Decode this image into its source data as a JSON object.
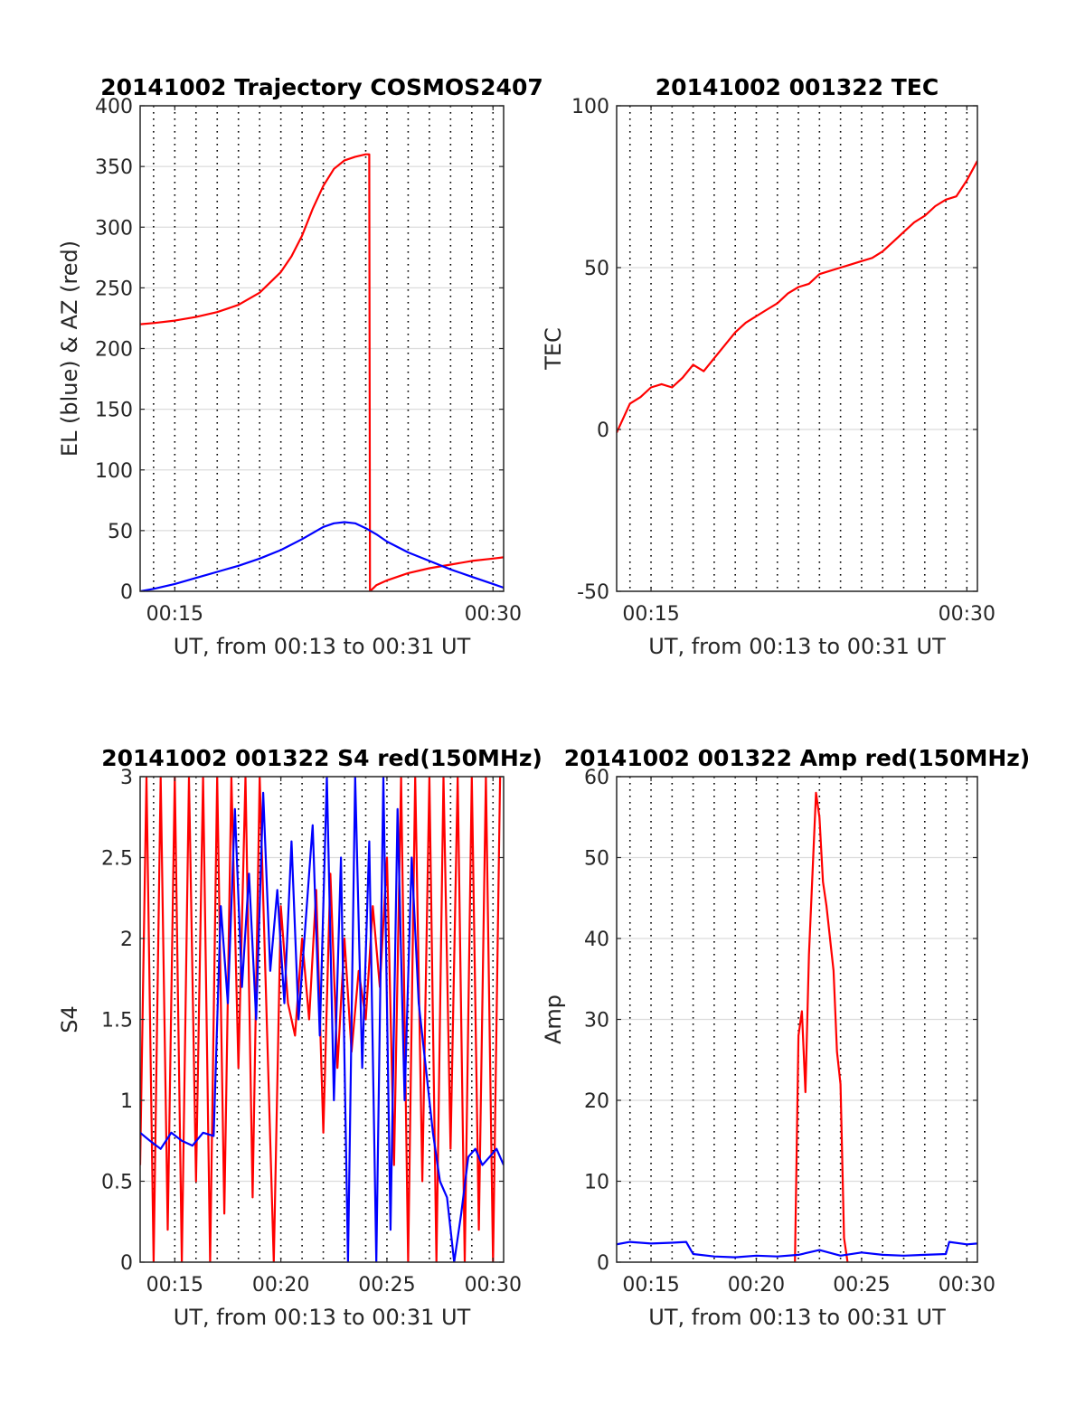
{
  "chart_data": [
    {
      "type": "line",
      "title": "20141002 Trajectory COSMOS2407",
      "xlabel": "UT, from 00:13 to 00:31 UT",
      "ylabel": "EL (blue) & AZ (red)",
      "xlim": [
        "00:13:22",
        "00:30:30"
      ],
      "ylim": [
        0,
        400
      ],
      "yticks": [
        0,
        50,
        100,
        150,
        200,
        250,
        300,
        350,
        400
      ],
      "xticks": [
        "00:15",
        "00:30"
      ],
      "grid": true,
      "series": [
        {
          "color": "#ff0000",
          "x": [
            "00:13:22",
            "00:14",
            "00:15",
            "00:16",
            "00:17",
            "00:18",
            "00:19",
            "00:20",
            "00:20:30",
            "00:21",
            "00:21:30",
            "00:22",
            "00:22:30",
            "00:23",
            "00:23:30",
            "00:24",
            "00:24:10",
            "00:24:12",
            "00:24:30",
            "00:25",
            "00:26",
            "00:27",
            "00:28",
            "00:29",
            "00:30",
            "00:30:30"
          ],
          "values": [
            220,
            221,
            223,
            226,
            230,
            236,
            246,
            263,
            276,
            293,
            315,
            334,
            348,
            355,
            358,
            360,
            360,
            0,
            5,
            9,
            15,
            19,
            22,
            25,
            27,
            28
          ]
        },
        {
          "color": "#0000ff",
          "x": [
            "00:13:22",
            "00:14",
            "00:15",
            "00:16",
            "00:17",
            "00:18",
            "00:19",
            "00:20",
            "00:21",
            "00:22",
            "00:22:30",
            "00:23",
            "00:23:30",
            "00:24",
            "00:24:30",
            "00:25",
            "00:26",
            "00:27",
            "00:28",
            "00:29",
            "00:30",
            "00:30:30"
          ],
          "values": [
            0,
            2,
            6,
            11,
            16,
            21,
            27,
            34,
            43,
            53,
            56,
            57,
            56,
            52,
            47,
            41,
            32,
            25,
            18,
            12,
            6,
            3
          ]
        }
      ]
    },
    {
      "type": "line",
      "title": "20141002 001322 TEC",
      "xlabel": "UT, from 00:13 to 00:31 UT",
      "ylabel": "TEC",
      "xlim": [
        "00:13:22",
        "00:30:30"
      ],
      "ylim": [
        -50,
        100
      ],
      "yticks": [
        -50,
        0,
        50,
        100
      ],
      "xticks": [
        "00:15",
        "00:30"
      ],
      "grid": true,
      "series": [
        {
          "color": "#ff0000",
          "x": [
            "00:13:22",
            "00:14",
            "00:14:30",
            "00:15",
            "00:15:30",
            "00:16",
            "00:16:30",
            "00:17",
            "00:17:30",
            "00:18",
            "00:18:30",
            "00:19",
            "00:19:30",
            "00:20",
            "00:20:30",
            "00:21",
            "00:21:30",
            "00:22",
            "00:22:30",
            "00:23",
            "00:23:30",
            "00:24",
            "00:24:30",
            "00:25",
            "00:25:30",
            "00:26",
            "00:26:30",
            "00:27",
            "00:27:30",
            "00:28",
            "00:28:30",
            "00:29",
            "00:29:30",
            "00:30",
            "00:30:30"
          ],
          "values": [
            -1,
            8,
            10,
            13,
            14,
            13,
            16,
            20,
            18,
            22,
            26,
            30,
            33,
            35,
            37,
            39,
            42,
            44,
            45,
            48,
            49,
            50,
            51,
            52,
            53,
            55,
            58,
            61,
            64,
            66,
            69,
            71,
            72,
            77,
            83
          ]
        }
      ]
    },
    {
      "type": "line",
      "title": "20141002 001322 S4 red(150MHz)",
      "xlabel": "UT, from 00:13 to 00:31 UT",
      "ylabel": "S4",
      "xlim": [
        "00:13:22",
        "00:30:30"
      ],
      "ylim": [
        0,
        3
      ],
      "yticks": [
        0,
        0.5,
        1,
        1.5,
        2,
        2.5,
        3
      ],
      "xticks": [
        "00:15",
        "00:20",
        "00:25",
        "00:30"
      ],
      "grid": true,
      "series": [
        {
          "color": "#ff0000",
          "x": [
            "00:13:22",
            "00:13:40",
            "00:14",
            "00:14:20",
            "00:14:40",
            "00:15",
            "00:15:20",
            "00:15:40",
            "00:16",
            "00:16:20",
            "00:16:40",
            "00:17",
            "00:17:20",
            "00:17:40",
            "00:18",
            "00:18:20",
            "00:18:40",
            "00:19",
            "00:19:20",
            "00:19:40",
            "00:20",
            "00:20:20",
            "00:20:40",
            "00:21",
            "00:21:20",
            "00:21:40",
            "00:22",
            "00:22:20",
            "00:22:40",
            "00:23",
            "00:23:20",
            "00:23:40",
            "00:24",
            "00:24:20",
            "00:24:40",
            "00:25",
            "00:25:20",
            "00:25:40",
            "00:26",
            "00:26:20",
            "00:26:40",
            "00:27",
            "00:27:20",
            "00:27:40",
            "00:28",
            "00:28:20",
            "00:28:40",
            "00:29",
            "00:29:20",
            "00:29:40",
            "00:30",
            "00:30:20"
          ],
          "values": [
            0.6,
            3,
            0,
            3,
            0.2,
            3,
            0,
            3,
            0.5,
            3,
            0,
            3,
            0.3,
            3,
            1.2,
            3,
            0.4,
            3,
            1.5,
            0,
            2.2,
            1.6,
            1.4,
            2.0,
            1.5,
            2.3,
            0.8,
            2.4,
            1.2,
            2.0,
            1.3,
            1.8,
            1.5,
            2.2,
            1.7,
            2.5,
            0.6,
            3,
            0,
            3,
            0.5,
            3,
            0,
            3,
            0.7,
            3,
            0,
            3,
            0.2,
            3,
            0,
            3
          ]
        },
        {
          "color": "#0000ff",
          "x": [
            "00:13:22",
            "00:13:50",
            "00:14:20",
            "00:14:50",
            "00:15:20",
            "00:15:50",
            "00:16:20",
            "00:16:50",
            "00:17:10",
            "00:17:30",
            "00:17:50",
            "00:18:10",
            "00:18:30",
            "00:18:50",
            "00:19:10",
            "00:19:30",
            "00:19:50",
            "00:20:10",
            "00:20:30",
            "00:20:50",
            "00:21:10",
            "00:21:30",
            "00:21:50",
            "00:22:10",
            "00:22:30",
            "00:22:50",
            "00:23:10",
            "00:23:30",
            "00:23:50",
            "00:24:10",
            "00:24:30",
            "00:24:50",
            "00:25:10",
            "00:25:30",
            "00:25:50",
            "00:26:10",
            "00:26:30",
            "00:26:50",
            "00:27:10",
            "00:27:30",
            "00:27:50",
            "00:28:10",
            "00:28:30",
            "00:28:50",
            "00:29:10",
            "00:29:30",
            "00:29:50",
            "00:30:10",
            "00:30:30"
          ],
          "values": [
            0.8,
            0.75,
            0.7,
            0.8,
            0.75,
            0.72,
            0.8,
            0.78,
            2.2,
            1.6,
            2.8,
            1.7,
            2.4,
            1.5,
            2.9,
            1.8,
            2.3,
            1.6,
            2.6,
            1.5,
            2.1,
            2.7,
            1.4,
            3,
            1.0,
            2.5,
            0,
            3,
            1.2,
            2.6,
            0,
            3,
            0.2,
            2.8,
            1.0,
            2.5,
            1.6,
            1.2,
            0.8,
            0.5,
            0.4,
            0,
            0.3,
            0.65,
            0.7,
            0.6,
            0.65,
            0.7,
            0.6
          ]
        }
      ]
    },
    {
      "type": "line",
      "title": "20141002 001322 Amp red(150MHz)",
      "xlabel": "UT, from 00:13 to 00:31 UT",
      "ylabel": "Amp",
      "xlim": [
        "00:13:22",
        "00:30:30"
      ],
      "ylim": [
        0,
        60
      ],
      "yticks": [
        0,
        10,
        20,
        30,
        40,
        50,
        60
      ],
      "xticks": [
        "00:15",
        "00:20",
        "00:25",
        "00:30"
      ],
      "grid": true,
      "series": [
        {
          "color": "#ff0000",
          "x": [
            "00:21:50",
            "00:22:00",
            "00:22:10",
            "00:22:20",
            "00:22:30",
            "00:22:40",
            "00:22:50",
            "00:23:00",
            "00:23:10",
            "00:23:20",
            "00:23:30",
            "00:23:40",
            "00:23:50",
            "00:24:00",
            "00:24:10",
            "00:24:20"
          ],
          "values": [
            0,
            28,
            31,
            21,
            38,
            48,
            58,
            55,
            47,
            44,
            40,
            36,
            26,
            22,
            3,
            0
          ]
        },
        {
          "color": "#0000ff",
          "x": [
            "00:13:22",
            "00:14",
            "00:15",
            "00:16",
            "00:16:40",
            "00:17",
            "00:18",
            "00:19",
            "00:20",
            "00:21",
            "00:22",
            "00:23",
            "00:24",
            "00:25",
            "00:26",
            "00:27",
            "00:28",
            "00:29",
            "00:29:10",
            "00:30",
            "00:30:30"
          ],
          "values": [
            2.2,
            2.5,
            2.3,
            2.4,
            2.5,
            1.0,
            0.7,
            0.6,
            0.8,
            0.7,
            0.9,
            1.5,
            0.8,
            1.2,
            0.9,
            0.8,
            0.9,
            1.0,
            2.5,
            2.2,
            2.3
          ]
        }
      ]
    }
  ]
}
